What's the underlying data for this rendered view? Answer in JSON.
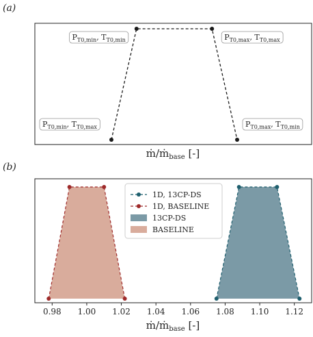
{
  "figure": {
    "panel_a_label": "(a)",
    "panel_b_label": "(b)",
    "xlabel_main": "ṁ/ṁ",
    "xlabel_sub": "base",
    "xlabel_unit": " [-]"
  },
  "chart_data": [
    {
      "type": "line",
      "panel": "(a)",
      "xlabel": "ṁ/ṁbase [-]",
      "ylabel": "",
      "grid": false,
      "x_ticks_shown": false,
      "y_ticks_shown": false,
      "series": [
        {
          "name": "",
          "color": "#1a1a1a",
          "linestyle": "dashed",
          "x": [
            0.0,
            0.2,
            0.8,
            1.0
          ],
          "y": [
            0.0,
            1.0,
            1.0,
            0.0
          ]
        }
      ],
      "annotations": [
        {
          "point": 0,
          "text_main_1": "P",
          "text_sub_1": "T0,min",
          "text_main_2": ", T",
          "text_sub_2": "T0,max",
          "placement": "left"
        },
        {
          "point": 1,
          "text_main_1": "P",
          "text_sub_1": "T0,min",
          "text_main_2": ", T",
          "text_sub_2": "T0,min",
          "placement": "left"
        },
        {
          "point": 2,
          "text_main_1": "P",
          "text_sub_1": "T0,max",
          "text_main_2": ", T",
          "text_sub_2": "T0,max",
          "placement": "right"
        },
        {
          "point": 3,
          "text_main_1": "P",
          "text_sub_1": "T0,max",
          "text_main_2": ", T",
          "text_sub_2": "T0,min",
          "placement": "right"
        }
      ]
    },
    {
      "type": "area",
      "panel": "(b)",
      "xlabel": "ṁ/ṁbase [-]",
      "ylabel": "",
      "grid": false,
      "xlim": [
        0.97,
        1.13
      ],
      "x_ticks": [
        0.98,
        1.0,
        1.02,
        1.04,
        1.06,
        1.08,
        1.1,
        1.12
      ],
      "x_tick_labels": [
        "0.98",
        "1.00",
        "1.02",
        "1.04",
        "1.06",
        "1.08",
        "1.10",
        "1.12"
      ],
      "legend_position": "top-center",
      "series": [
        {
          "name": "1D, 13CP-DS",
          "kind": "line",
          "color": "#1f5f6e",
          "linestyle": "dashed",
          "marker": "circle",
          "x": [
            1.075,
            1.088,
            1.11,
            1.123
          ],
          "y": [
            0.0,
            1.0,
            1.0,
            0.0
          ]
        },
        {
          "name": "1D, BASELINE",
          "kind": "line",
          "color": "#9e2a2a",
          "linestyle": "dashed",
          "marker": "circle",
          "x": [
            0.978,
            0.99,
            1.01,
            1.022
          ],
          "y": [
            0.0,
            1.0,
            1.0,
            0.0
          ]
        },
        {
          "name": "13CP-DS",
          "kind": "fill",
          "color": "#7b9aa6",
          "x": [
            1.075,
            1.088,
            1.11,
            1.123
          ],
          "y": [
            0.0,
            1.0,
            1.0,
            0.0
          ]
        },
        {
          "name": "BASELINE",
          "kind": "fill",
          "color": "#d9ac9c",
          "x": [
            0.978,
            0.99,
            1.01,
            1.022
          ],
          "y": [
            0.0,
            1.0,
            1.0,
            0.0
          ]
        }
      ]
    }
  ]
}
